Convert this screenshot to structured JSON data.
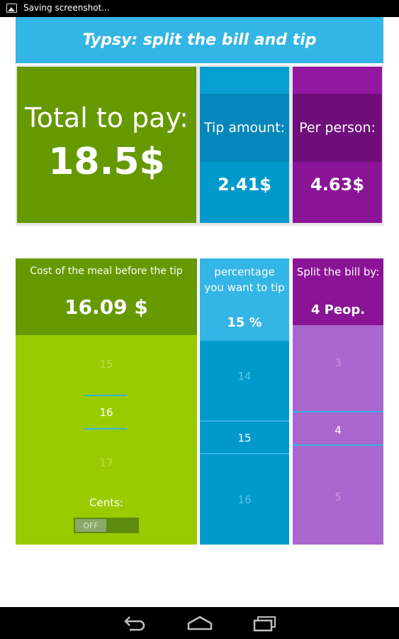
{
  "status_bar": {
    "text": "Saving screenshot..."
  },
  "app": {
    "title": "Typsy: split the bill and tip"
  },
  "summary": {
    "total_label": "Total to pay:",
    "total_value": "18.5$",
    "tip_label": "Tip amount:",
    "tip_value": "2.41$",
    "per_person_label": "Per person:",
    "per_person_value": "4.63$"
  },
  "meal": {
    "label": "Cost of the meal before the tip",
    "value": "16.09 $",
    "picker": {
      "prev": "15",
      "current": "16",
      "next": "17"
    },
    "cents_label": "Cents:",
    "cents_toggle": "OFF"
  },
  "percentage": {
    "label": "percentage you want to tip",
    "value": "15 %",
    "picker": {
      "prev": "14",
      "current": "15",
      "next": "16"
    }
  },
  "split": {
    "label": "Split the bill by:",
    "value": "4 Peop.",
    "picker": {
      "prev": "3",
      "current": "4",
      "next": "5"
    }
  },
  "nav": {
    "back": "back-icon",
    "home": "home-icon",
    "recents": "recents-icon"
  },
  "colors": {
    "title_bar": "#33b5e5",
    "green_dark": "#669900",
    "green_light": "#99cc00",
    "blue": "#0099cc",
    "blue_light": "#33b5e5",
    "purple_dark": "#8a1496",
    "purple_light": "#aa66cc"
  }
}
